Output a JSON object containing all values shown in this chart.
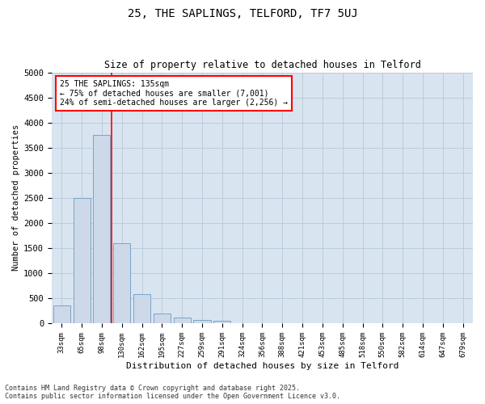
{
  "title1": "25, THE SAPLINGS, TELFORD, TF7 5UJ",
  "title2": "Size of property relative to detached houses in Telford",
  "xlabel": "Distribution of detached houses by size in Telford",
  "ylabel": "Number of detached properties",
  "categories": [
    "33sqm",
    "65sqm",
    "98sqm",
    "130sqm",
    "162sqm",
    "195sqm",
    "227sqm",
    "259sqm",
    "291sqm",
    "324sqm",
    "356sqm",
    "388sqm",
    "421sqm",
    "453sqm",
    "485sqm",
    "518sqm",
    "550sqm",
    "582sqm",
    "614sqm",
    "647sqm",
    "679sqm"
  ],
  "values": [
    350,
    2500,
    3750,
    1600,
    580,
    200,
    120,
    60,
    50,
    5,
    0,
    0,
    0,
    0,
    0,
    0,
    0,
    0,
    0,
    0,
    0
  ],
  "bar_color": "#cdd9e8",
  "bar_edge_color": "#6a9cc4",
  "red_line_xindex": 2.5,
  "annotation_text": "25 THE SAPLINGS: 135sqm\n← 75% of detached houses are smaller (7,001)\n24% of semi-detached houses are larger (2,256) →",
  "annotation_box_facecolor": "white",
  "annotation_box_edgecolor": "red",
  "ylim": [
    0,
    5000
  ],
  "yticks": [
    0,
    500,
    1000,
    1500,
    2000,
    2500,
    3000,
    3500,
    4000,
    4500,
    5000
  ],
  "grid_color": "#b8c8d8",
  "background_color": "#d8e4f0",
  "footnote1": "Contains HM Land Registry data © Crown copyright and database right 2025.",
  "footnote2": "Contains public sector information licensed under the Open Government Licence v3.0."
}
